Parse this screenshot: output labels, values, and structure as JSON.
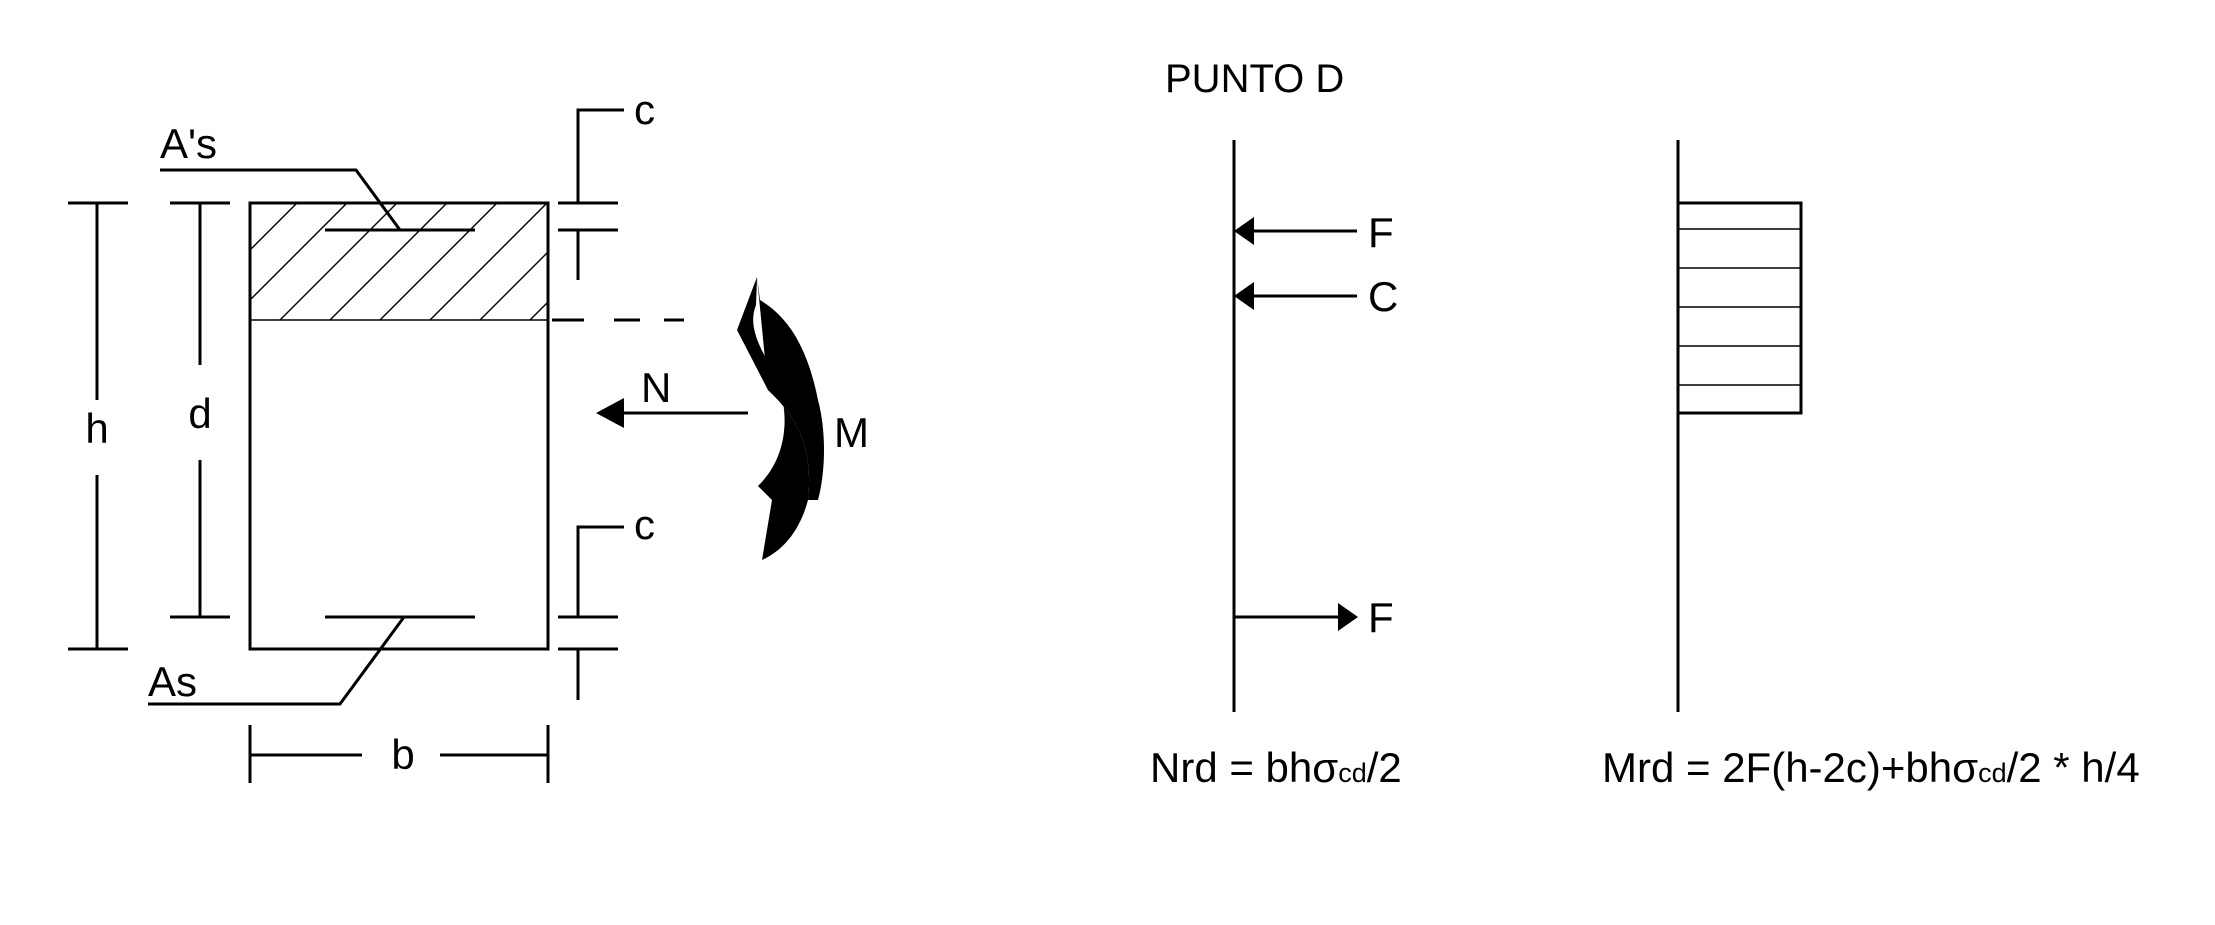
{
  "labels": {
    "h": "h",
    "d": "d",
    "b": "b",
    "c_top": "c",
    "c_bottom": "c",
    "a_s_prime": "A's",
    "a_s": "As",
    "n": "N",
    "m": "M",
    "f_top": "F",
    "c_force": "C",
    "f_bottom": "F"
  },
  "title": "PUNTO D",
  "formulas": {
    "nrd": {
      "pre": "Nrd = bhσ",
      "sub": "cd",
      "post": "/2"
    },
    "mrd": {
      "pre": "Mrd = 2F(h-2c)+bhσ",
      "sub": "cd",
      "post": "/2 * h/4"
    }
  }
}
